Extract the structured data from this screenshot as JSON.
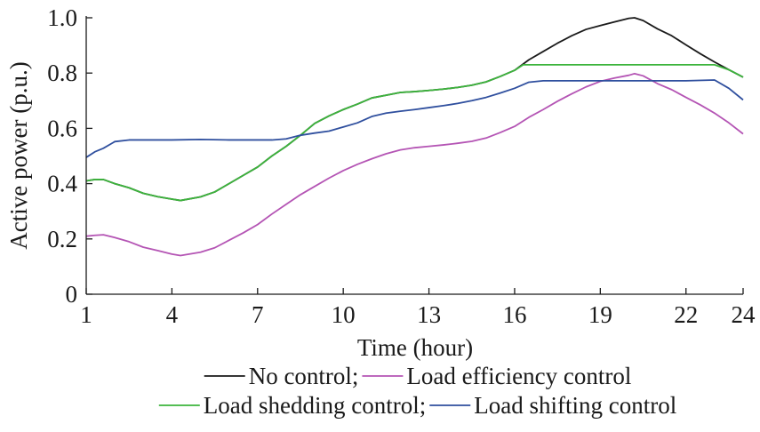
{
  "chart_data": {
    "type": "line",
    "title": "",
    "xlabel": "Time (hour)",
    "ylabel": "Active power (p.u.)",
    "xlim": [
      1,
      24
    ],
    "ylim": [
      0,
      1.0
    ],
    "xticks": [
      1,
      4,
      7,
      10,
      13,
      16,
      19,
      22,
      24
    ],
    "yticks": [
      0,
      0.2,
      0.4,
      0.6,
      0.8,
      1.0
    ],
    "xtick_labels": [
      "1",
      "4",
      "7",
      "10",
      "13",
      "16",
      "19",
      "22",
      "24"
    ],
    "ytick_labels": [
      "0",
      "0.2",
      "0.4",
      "0.6",
      "0.8",
      "1.0"
    ],
    "grid": false,
    "legend_position": "bottom",
    "legend": {
      "row1": [
        {
          "series": 0,
          "label": "No control;"
        },
        {
          "series": 1,
          "label": "Load efficiency control"
        }
      ],
      "row2": [
        {
          "series": 2,
          "label": "Load shedding control;"
        },
        {
          "series": 3,
          "label": "Load shifting control"
        }
      ]
    },
    "series": [
      {
        "name": "No control",
        "color": "#1a1a1a",
        "points": [
          [
            1,
            0.41
          ],
          [
            1.3,
            0.415
          ],
          [
            1.6,
            0.415
          ],
          [
            2,
            0.4
          ],
          [
            2.5,
            0.385
          ],
          [
            3,
            0.365
          ],
          [
            3.5,
            0.353
          ],
          [
            4,
            0.344
          ],
          [
            4.3,
            0.339
          ],
          [
            5,
            0.352
          ],
          [
            5.5,
            0.37
          ],
          [
            6,
            0.4
          ],
          [
            6.5,
            0.43
          ],
          [
            7,
            0.46
          ],
          [
            7.5,
            0.5
          ],
          [
            8,
            0.535
          ],
          [
            8.5,
            0.575
          ],
          [
            9,
            0.618
          ],
          [
            9.5,
            0.645
          ],
          [
            10,
            0.668
          ],
          [
            10.5,
            0.688
          ],
          [
            11,
            0.71
          ],
          [
            11.5,
            0.72
          ],
          [
            12,
            0.73
          ],
          [
            12.5,
            0.733
          ],
          [
            13,
            0.737
          ],
          [
            13.5,
            0.742
          ],
          [
            14,
            0.748
          ],
          [
            14.5,
            0.756
          ],
          [
            15,
            0.768
          ],
          [
            15.5,
            0.788
          ],
          [
            16,
            0.81
          ],
          [
            16.5,
            0.848
          ],
          [
            17,
            0.878
          ],
          [
            17.5,
            0.908
          ],
          [
            18,
            0.935
          ],
          [
            18.5,
            0.958
          ],
          [
            19,
            0.972
          ],
          [
            19.5,
            0.985
          ],
          [
            20,
            0.998
          ],
          [
            20.2,
            1.0
          ],
          [
            20.5,
            0.99
          ],
          [
            21,
            0.96
          ],
          [
            21.5,
            0.935
          ],
          [
            22,
            0.902
          ],
          [
            22.5,
            0.87
          ],
          [
            23,
            0.84
          ],
          [
            23.5,
            0.812
          ],
          [
            24,
            0.785
          ]
        ]
      },
      {
        "name": "Load efficiency control",
        "color": "#b454b4",
        "points": [
          [
            1,
            0.21
          ],
          [
            1.3,
            0.213
          ],
          [
            1.6,
            0.215
          ],
          [
            2,
            0.205
          ],
          [
            2.5,
            0.19
          ],
          [
            3,
            0.17
          ],
          [
            3.5,
            0.158
          ],
          [
            4,
            0.145
          ],
          [
            4.3,
            0.14
          ],
          [
            5,
            0.152
          ],
          [
            5.5,
            0.168
          ],
          [
            6,
            0.195
          ],
          [
            6.5,
            0.222
          ],
          [
            7,
            0.252
          ],
          [
            7.5,
            0.29
          ],
          [
            8,
            0.325
          ],
          [
            8.5,
            0.36
          ],
          [
            9,
            0.39
          ],
          [
            9.5,
            0.42
          ],
          [
            10,
            0.447
          ],
          [
            10.5,
            0.47
          ],
          [
            11,
            0.49
          ],
          [
            11.5,
            0.508
          ],
          [
            12,
            0.522
          ],
          [
            12.5,
            0.53
          ],
          [
            13,
            0.535
          ],
          [
            13.5,
            0.54
          ],
          [
            14,
            0.546
          ],
          [
            14.5,
            0.553
          ],
          [
            15,
            0.565
          ],
          [
            15.5,
            0.585
          ],
          [
            16,
            0.607
          ],
          [
            16.5,
            0.64
          ],
          [
            17,
            0.668
          ],
          [
            17.5,
            0.698
          ],
          [
            18,
            0.725
          ],
          [
            18.5,
            0.75
          ],
          [
            19,
            0.77
          ],
          [
            19.5,
            0.782
          ],
          [
            20,
            0.792
          ],
          [
            20.2,
            0.798
          ],
          [
            20.5,
            0.79
          ],
          [
            21,
            0.762
          ],
          [
            21.5,
            0.74
          ],
          [
            22,
            0.712
          ],
          [
            22.5,
            0.685
          ],
          [
            23,
            0.655
          ],
          [
            23.5,
            0.62
          ],
          [
            24,
            0.58
          ]
        ]
      },
      {
        "name": "Load shedding control",
        "color": "#3cb43c",
        "points": [
          [
            1,
            0.41
          ],
          [
            1.3,
            0.415
          ],
          [
            1.6,
            0.415
          ],
          [
            2,
            0.4
          ],
          [
            2.5,
            0.385
          ],
          [
            3,
            0.365
          ],
          [
            3.5,
            0.353
          ],
          [
            4,
            0.344
          ],
          [
            4.3,
            0.339
          ],
          [
            5,
            0.352
          ],
          [
            5.5,
            0.37
          ],
          [
            6,
            0.4
          ],
          [
            6.5,
            0.43
          ],
          [
            7,
            0.46
          ],
          [
            7.5,
            0.5
          ],
          [
            8,
            0.535
          ],
          [
            8.5,
            0.575
          ],
          [
            9,
            0.618
          ],
          [
            9.5,
            0.645
          ],
          [
            10,
            0.668
          ],
          [
            10.5,
            0.688
          ],
          [
            11,
            0.71
          ],
          [
            11.5,
            0.72
          ],
          [
            12,
            0.73
          ],
          [
            12.5,
            0.733
          ],
          [
            13,
            0.737
          ],
          [
            13.5,
            0.742
          ],
          [
            14,
            0.748
          ],
          [
            14.5,
            0.756
          ],
          [
            15,
            0.768
          ],
          [
            15.5,
            0.788
          ],
          [
            16,
            0.81
          ],
          [
            16.3,
            0.83
          ],
          [
            23,
            0.83
          ],
          [
            23.5,
            0.812
          ],
          [
            24,
            0.785
          ]
        ]
      },
      {
        "name": "Load shifting control",
        "color": "#2f4f9e",
        "points": [
          [
            1,
            0.495
          ],
          [
            1.3,
            0.515
          ],
          [
            1.6,
            0.528
          ],
          [
            2,
            0.552
          ],
          [
            2.5,
            0.558
          ],
          [
            3,
            0.558
          ],
          [
            4,
            0.558
          ],
          [
            5,
            0.56
          ],
          [
            6,
            0.558
          ],
          [
            7,
            0.558
          ],
          [
            7.5,
            0.558
          ],
          [
            8,
            0.562
          ],
          [
            8.5,
            0.575
          ],
          [
            9,
            0.583
          ],
          [
            9.5,
            0.59
          ],
          [
            10,
            0.605
          ],
          [
            10.5,
            0.62
          ],
          [
            11,
            0.643
          ],
          [
            11.5,
            0.655
          ],
          [
            12,
            0.662
          ],
          [
            12.5,
            0.668
          ],
          [
            13,
            0.675
          ],
          [
            13.5,
            0.682
          ],
          [
            14,
            0.69
          ],
          [
            14.5,
            0.7
          ],
          [
            15,
            0.712
          ],
          [
            15.5,
            0.728
          ],
          [
            16,
            0.745
          ],
          [
            16.5,
            0.767
          ],
          [
            17,
            0.772
          ],
          [
            18,
            0.772
          ],
          [
            19,
            0.772
          ],
          [
            20,
            0.772
          ],
          [
            21,
            0.772
          ],
          [
            22,
            0.772
          ],
          [
            23,
            0.775
          ],
          [
            23.5,
            0.745
          ],
          [
            24,
            0.703
          ]
        ]
      }
    ]
  }
}
